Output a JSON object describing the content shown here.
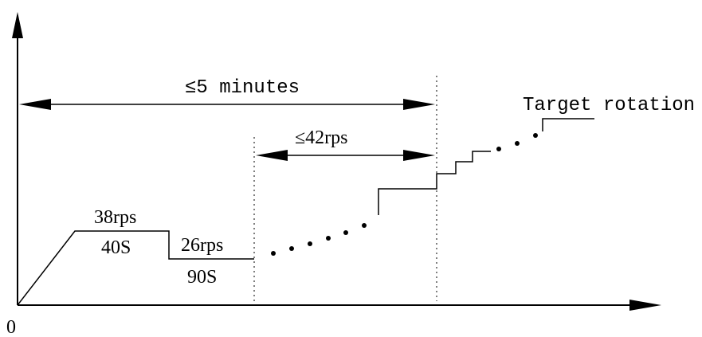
{
  "origin_label": "0",
  "time_span": {
    "label": "≤5 minutes"
  },
  "speed_span": {
    "label": "≤42rps"
  },
  "stage_1": {
    "speed_label": "38rps",
    "time_label": "40S"
  },
  "stage_2": {
    "speed_label": "26rps",
    "time_label": "90S"
  },
  "target": {
    "label": "Target rotation"
  },
  "colors": {
    "line": "#000000",
    "background": "#ffffff"
  }
}
